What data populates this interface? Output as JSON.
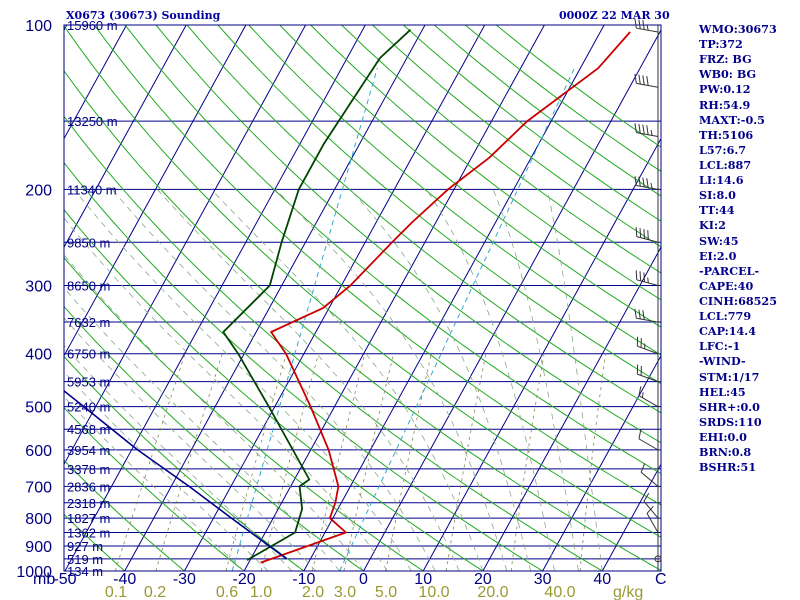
{
  "header": {
    "station_title": "X0673 (30673) Sounding",
    "valid_time": "0000Z 22 MAR 30"
  },
  "stats": [
    "WMO:30673",
    "TP:372",
    "FRZ: BG",
    "WB0: BG",
    "PW:0.12",
    "RH:54.9",
    "MAXT:-0.5",
    "TH:5106",
    "L57:6.7",
    "LCL:887",
    "LI:14.6",
    "SI:8.0",
    "TT:44",
    "KI:2",
    "SW:45",
    "EI:2.0",
    "-PARCEL-",
    "CAPE:40",
    "CINH:68525",
    "LCL:779",
    "CAP:14.4",
    "LFC:-1",
    "-WIND-",
    "STM:1/17",
    "HEL:45",
    "SHR+:0.0",
    "SRDS:110",
    "EHI:0.0",
    "BRN:0.8",
    "BSHR:51"
  ],
  "colors": {
    "background": "#ffffff",
    "frame": "#000080",
    "isotherm": "#00008b",
    "isobar": "#00008b",
    "dry_adiabat": "#22aa22",
    "moist_adiabat": "#88aa88",
    "mixing_ratio": "#888855",
    "parcel": "#00008b",
    "wet_bulb": "#33aacc",
    "temperature": "#cc0000",
    "dewpoint": "#004400",
    "wind_barb": "#333333",
    "left_labels": "#000080",
    "bottom_labels": "#000080",
    "mixing_labels": "#999933"
  },
  "chart_data": {
    "type": "line",
    "title": "X0673 (30673) Sounding",
    "chart_kind": "skew-t log-p",
    "y_scale": "log",
    "ylim": [
      1000,
      100
    ],
    "xlim": [
      -50,
      50
    ],
    "pressure_ticks": [
      100,
      200,
      300,
      400,
      500,
      600,
      700,
      800,
      900,
      1000
    ],
    "pressure_unit_label": "mb",
    "temperature_ticks": [
      -50,
      -40,
      -30,
      -20,
      -10,
      0,
      10,
      20,
      30,
      40
    ],
    "temperature_unit_label": "C",
    "height_labels": [
      {
        "text": "15960 m",
        "p": 100
      },
      {
        "text": "13250 m",
        "p": 150
      },
      {
        "text": "11340 m",
        "p": 200
      },
      {
        "text": "9850 m",
        "p": 250
      },
      {
        "text": "8650 m",
        "p": 300
      },
      {
        "text": "7632 m",
        "p": 350
      },
      {
        "text": "6750 m",
        "p": 400
      },
      {
        "text": "5953 m",
        "p": 450
      },
      {
        "text": "5240 m",
        "p": 500
      },
      {
        "text": "4568 m",
        "p": 550
      },
      {
        "text": "3954 m",
        "p": 600
      },
      {
        "text": "3378 m",
        "p": 650
      },
      {
        "text": "2836 m",
        "p": 700
      },
      {
        "text": "2318 m",
        "p": 750
      },
      {
        "text": "1827 m",
        "p": 800
      },
      {
        "text": "1362 m",
        "p": 850
      },
      {
        "text": "927 m",
        "p": 900
      },
      {
        "text": "519 m",
        "p": 950
      },
      {
        "text": "134 m",
        "p": 1000
      }
    ],
    "mixing_ratio_labels": [
      {
        "text": "0.1",
        "w": 0.1
      },
      {
        "text": "0.2",
        "w": 0.2
      },
      {
        "text": "0.6",
        "w": 0.6
      },
      {
        "text": "1.0",
        "w": 1.0
      },
      {
        "text": "2.0",
        "w": 2.0
      },
      {
        "text": "3.0",
        "w": 3.0
      },
      {
        "text": "5.0",
        "w": 5.0
      },
      {
        "text": "10.0",
        "w": 10.0
      },
      {
        "text": "20.0",
        "w": 20.0
      },
      {
        "text": "40.0",
        "w": 40.0
      }
    ],
    "mixing_ratio_unit": "g/kg",
    "series": [
      {
        "key": "temperature",
        "points": [
          {
            "p": 965,
            "t": -18.0
          },
          {
            "p": 850,
            "t": -6.5
          },
          {
            "p": 800,
            "t": -10.5
          },
          {
            "p": 750,
            "t": -11.0
          },
          {
            "p": 700,
            "t": -12.0
          },
          {
            "p": 600,
            "t": -17.0
          },
          {
            "p": 500,
            "t": -24.0
          },
          {
            "p": 400,
            "t": -33.0
          },
          {
            "p": 365,
            "t": -37.5
          },
          {
            "p": 330,
            "t": -31.0
          },
          {
            "p": 300,
            "t": -28.5
          },
          {
            "p": 250,
            "t": -25.5
          },
          {
            "p": 230,
            "t": -24.0
          },
          {
            "p": 200,
            "t": -21.0
          },
          {
            "p": 175,
            "t": -17.0
          },
          {
            "p": 150,
            "t": -14.0
          },
          {
            "p": 120,
            "t": -7.0
          },
          {
            "p": 103,
            "t": -5.0
          }
        ]
      },
      {
        "key": "dewpoint",
        "points": [
          {
            "p": 955,
            "t": -20.5
          },
          {
            "p": 850,
            "t": -15.0
          },
          {
            "p": 770,
            "t": -16.0
          },
          {
            "p": 700,
            "t": -18.5
          },
          {
            "p": 680,
            "t": -17.5
          },
          {
            "p": 500,
            "t": -31.0
          },
          {
            "p": 400,
            "t": -41.0
          },
          {
            "p": 365,
            "t": -45.5
          },
          {
            "p": 300,
            "t": -42.0
          },
          {
            "p": 250,
            "t": -44.0
          },
          {
            "p": 200,
            "t": -46.0
          },
          {
            "p": 165,
            "t": -46.0
          },
          {
            "p": 115,
            "t": -44.5
          },
          {
            "p": 102,
            "t": -42.0
          }
        ]
      },
      {
        "key": "parcel",
        "points": [
          {
            "p": 950,
            "t": -14.0
          },
          {
            "p": 800,
            "t": -27.0
          },
          {
            "p": 700,
            "t": -37.0
          },
          {
            "p": 600,
            "t": -49.0
          },
          {
            "p": 500,
            "t": -62.0
          },
          {
            "p": 400,
            "t": -78.0
          },
          {
            "p": 300,
            "t": -98.0
          },
          {
            "p": 200,
            "t": -127.0
          },
          {
            "p": 125,
            "t": -160.0
          }
        ]
      }
    ],
    "wind_barbs": [
      {
        "p": 103,
        "dir": 280,
        "spd": 35
      },
      {
        "p": 130,
        "dir": 280,
        "spd": 40
      },
      {
        "p": 160,
        "dir": 280,
        "spd": 45
      },
      {
        "p": 200,
        "dir": 280,
        "spd": 45
      },
      {
        "p": 250,
        "dir": 285,
        "spd": 40
      },
      {
        "p": 300,
        "dir": 285,
        "spd": 35
      },
      {
        "p": 350,
        "dir": 280,
        "spd": 30
      },
      {
        "p": 400,
        "dir": 290,
        "spd": 25
      },
      {
        "p": 450,
        "dir": 290,
        "spd": 20
      },
      {
        "p": 500,
        "dir": 300,
        "spd": 15
      },
      {
        "p": 600,
        "dir": 300,
        "spd": 10
      },
      {
        "p": 700,
        "dir": 310,
        "spd": 10
      },
      {
        "p": 800,
        "dir": 320,
        "spd": 10
      },
      {
        "p": 850,
        "dir": 330,
        "spd": 10
      },
      {
        "p": 950,
        "dir": 0,
        "spd": 0
      }
    ]
  }
}
